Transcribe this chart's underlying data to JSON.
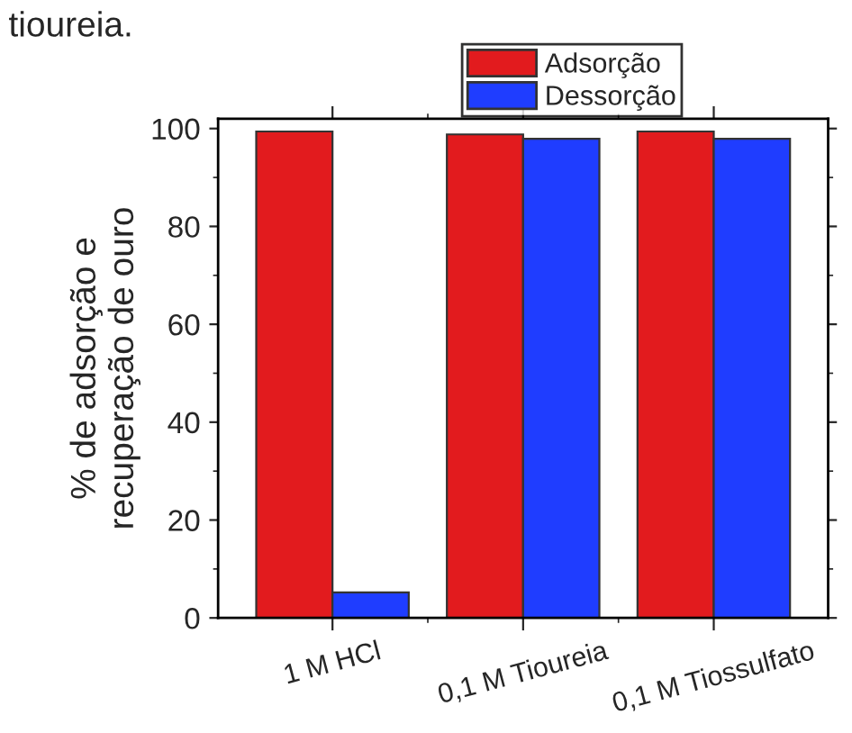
{
  "chart_data": {
    "type": "bar",
    "ylabel": "% de adsorção e\nrecuperação de ouro",
    "categories": [
      "1 M HCl",
      "0,1 M Tioureia",
      "0,1 M Tiossulfato"
    ],
    "series": [
      {
        "name": "Adsorção",
        "color": "#e21b1e",
        "values": [
          99.4,
          98.8,
          99.4
        ]
      },
      {
        "name": "Dessorção",
        "color": "#1f3dff",
        "values": [
          5.2,
          97.9,
          97.9
        ]
      }
    ],
    "ylim": [
      0,
      102
    ],
    "yticks": [
      0,
      20,
      40,
      60,
      80,
      100
    ],
    "grid": false,
    "legend": "top",
    "annotations": [
      "tioureia."
    ]
  }
}
